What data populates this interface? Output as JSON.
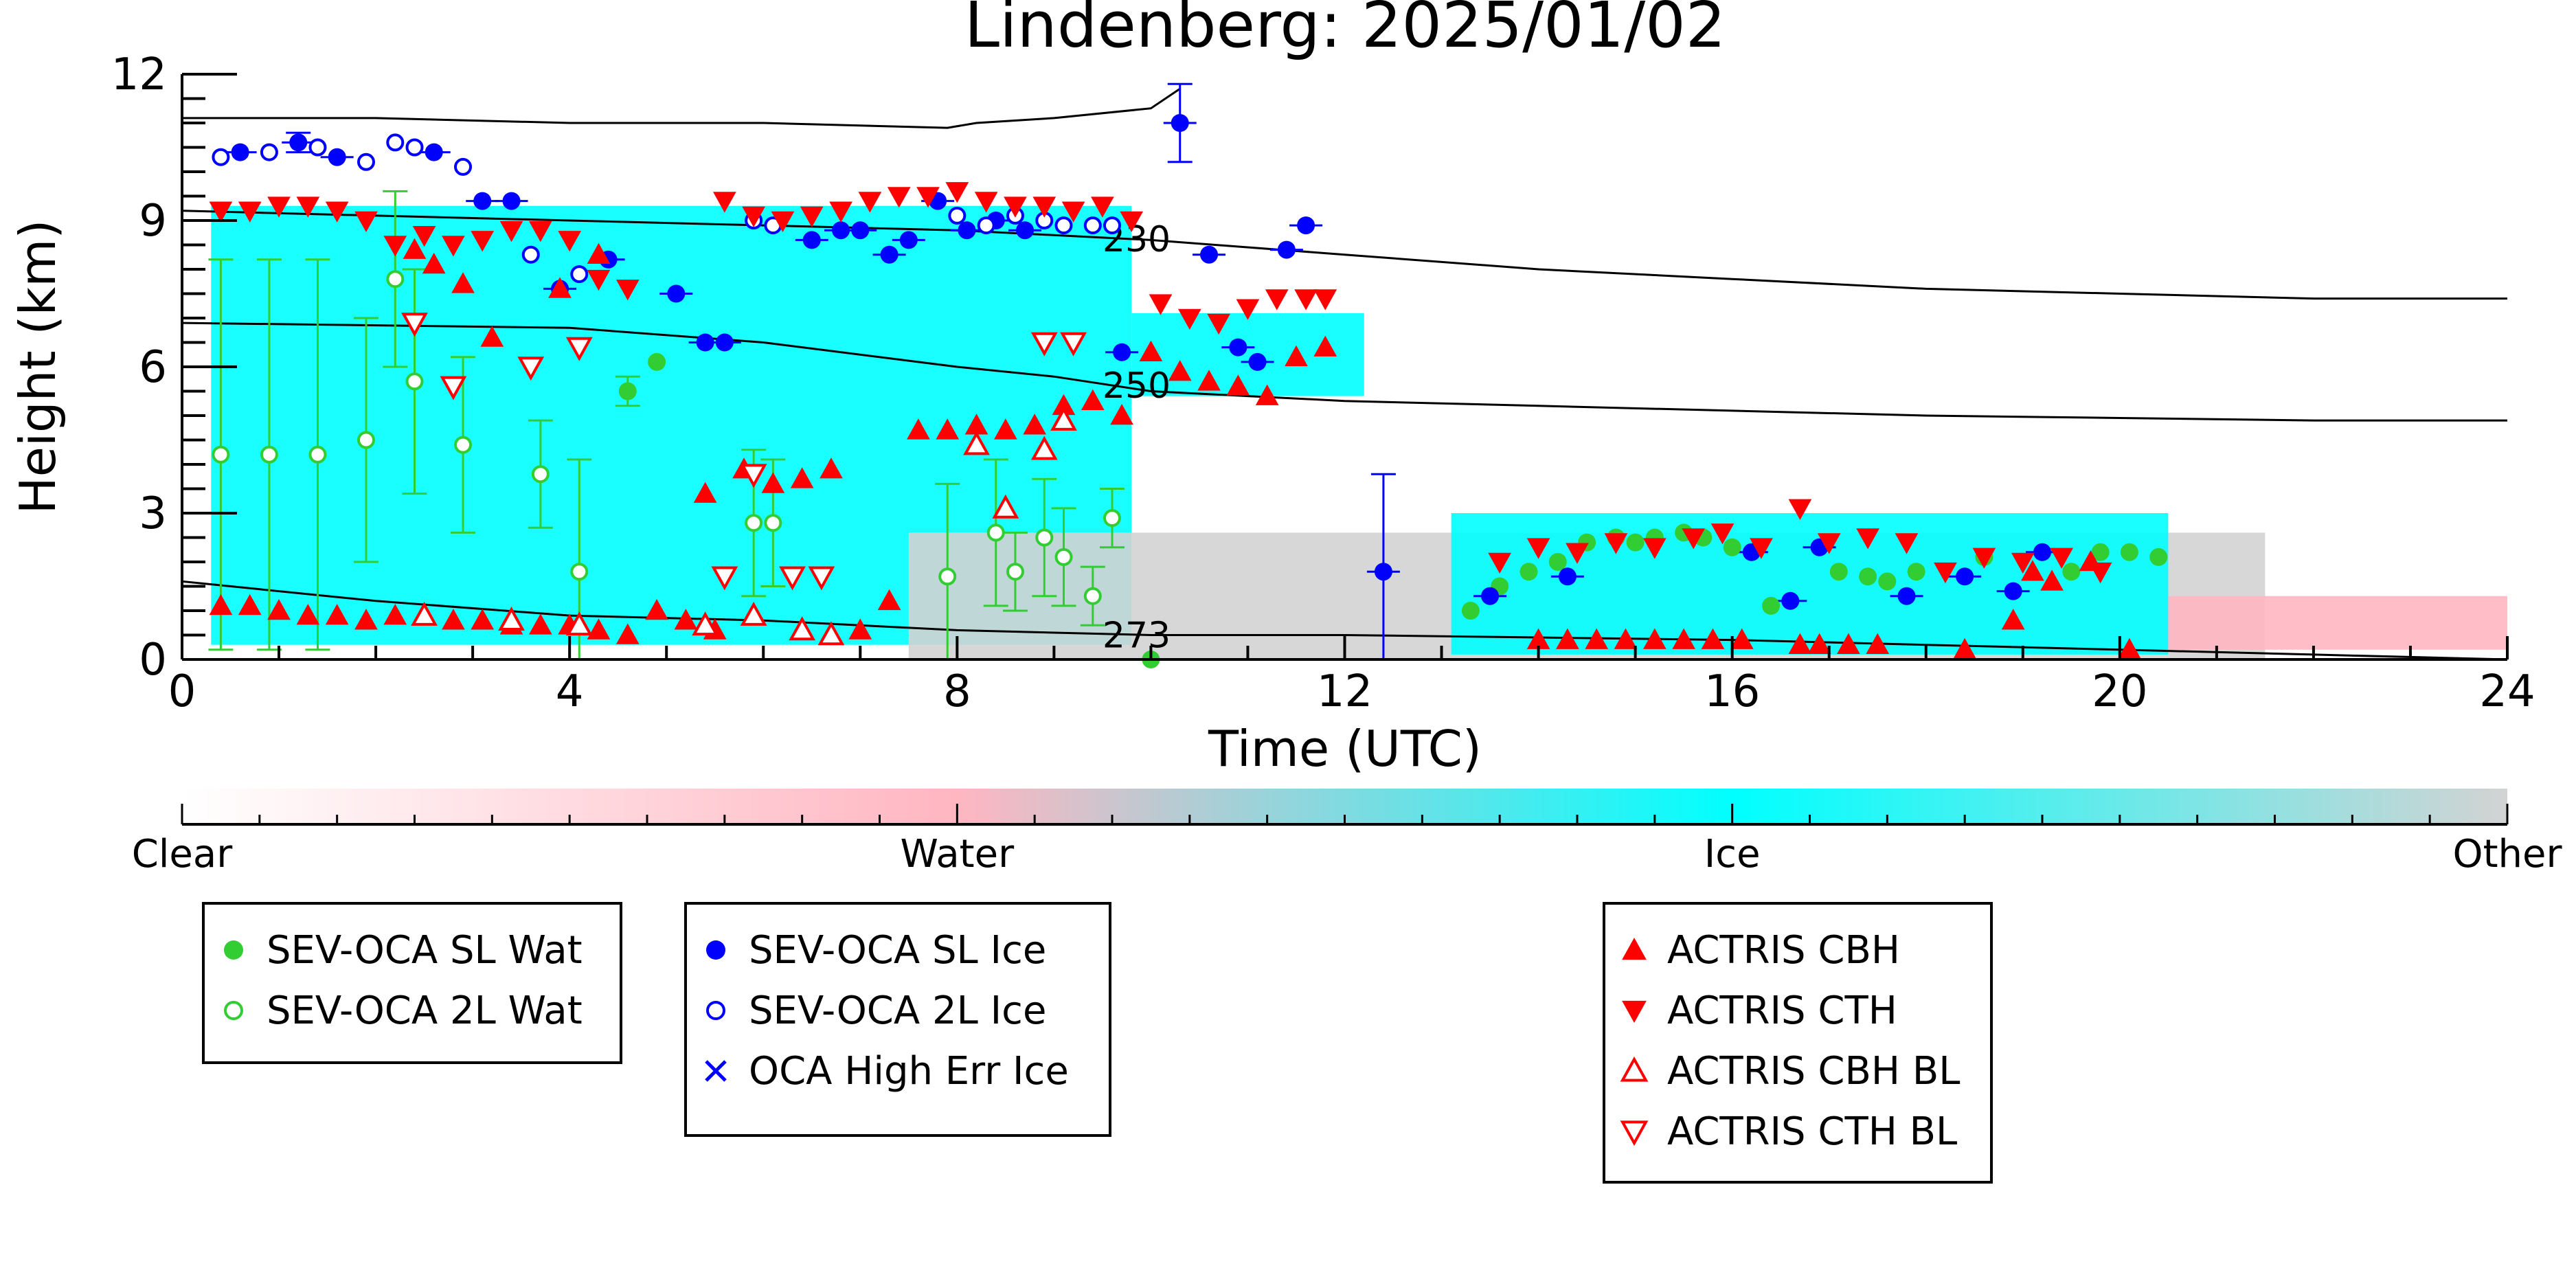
{
  "chart_data": {
    "type": "scatter",
    "title": "Lindenberg: 2025/01/02",
    "xlabel": "Time (UTC)",
    "ylabel": "Height (km)",
    "xlim": [
      0,
      24
    ],
    "ylim": [
      0,
      12
    ],
    "xticks": [
      0,
      4,
      8,
      12,
      16,
      20,
      24
    ],
    "yticks": [
      0,
      3,
      6,
      9,
      12
    ],
    "colorbar": {
      "labels": [
        "Clear",
        "Water",
        "Ice",
        "Other"
      ],
      "colors": [
        "#ffffff",
        "#ffb6c1",
        "#00ffff",
        "#d3d3d3"
      ]
    },
    "background_regions": [
      {
        "class": "Ice",
        "x": [
          0.3,
          9.8
        ],
        "y": [
          0.3,
          9.3
        ],
        "color": "#00ffff"
      },
      {
        "class": "Ice",
        "x": [
          9.8,
          12.2
        ],
        "y": [
          5.4,
          7.1
        ],
        "color": "#00ffff"
      },
      {
        "class": "Other",
        "x": [
          7.5,
          21.5
        ],
        "y": [
          0.0,
          2.6
        ],
        "color": "#d3d3d3"
      },
      {
        "class": "Ice",
        "x": [
          13.1,
          20.5
        ],
        "y": [
          0.1,
          3.0
        ],
        "color": "#00ffff"
      },
      {
        "class": "Water",
        "x": [
          20.5,
          24
        ],
        "y": [
          0.2,
          1.3
        ],
        "color": "#ffb6c1"
      }
    ],
    "contours": [
      {
        "label": "230",
        "label_x": 9.5,
        "x": [
          0,
          4,
          8,
          10,
          12,
          14,
          16,
          18,
          20,
          22,
          24
        ],
        "y": [
          9.2,
          9.0,
          8.8,
          8.6,
          8.3,
          8.0,
          7.8,
          7.6,
          7.5,
          7.4,
          7.4
        ]
      },
      {
        "label": "250",
        "label_x": 9.5,
        "x": [
          0,
          4,
          6,
          8,
          9,
          10,
          11,
          12,
          14,
          16,
          18,
          20,
          22,
          24
        ],
        "y": [
          6.9,
          6.8,
          6.5,
          6.0,
          5.8,
          5.5,
          5.4,
          5.3,
          5.2,
          5.1,
          5.0,
          4.95,
          4.9,
          4.9
        ]
      },
      {
        "label": "273",
        "label_x": 9.5,
        "x": [
          0,
          2,
          4,
          6,
          8,
          10,
          12,
          14,
          16,
          18,
          20,
          22,
          24
        ],
        "y": [
          1.6,
          1.2,
          0.9,
          0.8,
          0.6,
          0.5,
          0.5,
          0.45,
          0.4,
          0.3,
          0.2,
          0.1,
          0.0
        ]
      },
      {
        "label": "",
        "label_x": 0,
        "x": [
          0,
          2,
          4,
          6,
          7.9,
          8.2,
          9,
          10,
          10.3
        ],
        "y": [
          11.1,
          11.1,
          11.0,
          11.0,
          10.9,
          11.0,
          11.1,
          11.3,
          11.7
        ]
      }
    ],
    "series": [
      {
        "name": "SEV-OCA SL Wat",
        "marker": "filled-circle",
        "color": "#32cd32",
        "x": [
          4.6,
          4.9,
          13.3,
          13.6,
          13.9,
          14.2,
          14.5,
          14.8,
          15.0,
          15.2,
          15.5,
          15.7,
          16.0,
          16.4,
          17.1,
          17.4,
          17.6,
          17.9,
          18.6,
          19.5,
          19.8,
          20.1,
          20.4,
          10.0
        ],
        "y": [
          5.5,
          6.1,
          1.0,
          1.5,
          1.8,
          2.0,
          2.4,
          2.5,
          2.4,
          2.5,
          2.6,
          2.5,
          2.3,
          1.1,
          1.8,
          1.7,
          1.6,
          1.8,
          2.1,
          1.8,
          2.2,
          2.2,
          2.1,
          0.0
        ],
        "yerr": [
          0.3,
          0,
          0,
          0,
          0,
          0,
          0,
          0,
          0,
          0,
          0,
          0,
          0,
          0,
          0,
          0,
          0,
          0,
          0,
          0,
          0,
          0,
          0,
          0
        ]
      },
      {
        "name": "SEV-OCA 2L Wat",
        "marker": "open-circle",
        "color": "#32cd32",
        "x": [
          0.4,
          0.9,
          1.4,
          1.9,
          2.2,
          2.4,
          2.9,
          3.7,
          4.1,
          5.9,
          6.1,
          7.9,
          8.4,
          8.6,
          8.9,
          9.1,
          9.4,
          9.6
        ],
        "y": [
          4.2,
          4.2,
          4.2,
          4.5,
          7.8,
          5.7,
          4.4,
          3.8,
          1.8,
          2.8,
          2.8,
          1.7,
          2.6,
          1.8,
          2.5,
          2.1,
          1.3,
          2.9
        ],
        "yerr": [
          4.0,
          4.0,
          4.0,
          2.5,
          1.8,
          2.3,
          1.8,
          1.1,
          2.3,
          1.5,
          1.3,
          1.9,
          1.5,
          0.8,
          1.2,
          1.0,
          0.6,
          0.6
        ]
      },
      {
        "name": "SEV-OCA SL Ice",
        "marker": "filled-circle",
        "color": "#0000ff",
        "x": [
          0.6,
          1.2,
          1.6,
          2.6,
          3.1,
          3.4,
          3.9,
          4.4,
          5.1,
          5.4,
          5.6,
          6.5,
          6.8,
          7.0,
          7.3,
          7.5,
          7.8,
          8.1,
          8.4,
          8.7,
          10.3,
          10.6,
          10.9,
          11.1,
          11.4,
          11.6,
          12.4,
          13.5,
          14.3,
          16.2,
          16.6,
          16.9,
          17.8,
          18.4,
          18.9,
          19.2,
          9.7
        ],
        "y": [
          10.4,
          10.6,
          10.3,
          10.4,
          9.4,
          9.4,
          7.6,
          8.2,
          7.5,
          6.5,
          6.5,
          8.6,
          8.8,
          8.8,
          8.3,
          8.6,
          9.4,
          8.8,
          9.0,
          8.8,
          11.0,
          8.3,
          6.4,
          6.1,
          8.4,
          8.9,
          1.8,
          1.3,
          1.7,
          2.2,
          1.2,
          2.3,
          1.3,
          1.7,
          1.4,
          2.2,
          6.3
        ],
        "yerr": [
          0,
          0.2,
          0,
          0,
          0,
          0,
          0,
          0,
          0,
          0,
          0,
          0,
          0,
          0,
          0,
          0,
          0,
          0,
          0,
          0,
          0.8,
          0,
          0,
          0,
          0,
          0,
          2.0,
          0,
          0,
          0,
          0,
          0,
          0,
          0,
          0,
          0,
          0
        ]
      },
      {
        "name": "SEV-OCA 2L Ice",
        "marker": "open-circle",
        "color": "#0000ff",
        "x": [
          0.4,
          0.9,
          1.4,
          1.9,
          2.2,
          2.4,
          2.9,
          3.6,
          4.1,
          5.9,
          6.1,
          8.0,
          8.3,
          8.6,
          8.9,
          9.1,
          9.4,
          9.6
        ],
        "y": [
          10.3,
          10.4,
          10.5,
          10.2,
          10.6,
          10.5,
          10.1,
          8.3,
          7.9,
          9.0,
          8.9,
          9.1,
          8.9,
          9.1,
          9.0,
          8.9,
          8.9,
          8.9
        ],
        "yerr": [
          0,
          0,
          0,
          0,
          0,
          0,
          0,
          0,
          0,
          0,
          0,
          0,
          0,
          0,
          0,
          0,
          0,
          0
        ]
      },
      {
        "name": "OCA High Err Ice",
        "marker": "x",
        "color": "#0000ff",
        "x": [],
        "y": []
      },
      {
        "name": "ACTRIS CBH",
        "marker": "triangle-up",
        "color": "#ff0000",
        "x": [
          0.4,
          0.7,
          1.0,
          1.3,
          1.6,
          1.9,
          2.2,
          2.5,
          2.8,
          3.1,
          3.4,
          3.7,
          4.0,
          4.3,
          4.6,
          4.9,
          5.2,
          5.5,
          5.8,
          6.1,
          6.4,
          6.7,
          7.0,
          7.3,
          7.6,
          7.9,
          8.2,
          8.5,
          8.8,
          9.1,
          9.4,
          9.7,
          10.0,
          10.3,
          10.6,
          10.9,
          11.2,
          11.5,
          11.8,
          2.4,
          2.6,
          2.9,
          3.2,
          3.9,
          4.3,
          5.4,
          14.0,
          14.3,
          14.6,
          14.9,
          15.2,
          15.5,
          15.8,
          16.1,
          16.7,
          16.9,
          17.2,
          17.5,
          18.4,
          18.9,
          19.1,
          19.3,
          19.7,
          20.1
        ],
        "y": [
          1.1,
          1.1,
          1.0,
          0.9,
          0.9,
          0.8,
          0.9,
          0.9,
          0.8,
          0.8,
          0.7,
          0.7,
          0.7,
          0.6,
          0.5,
          1.0,
          0.8,
          0.6,
          3.9,
          3.6,
          3.7,
          3.9,
          0.6,
          1.2,
          4.7,
          4.7,
          4.8,
          4.7,
          4.8,
          5.2,
          5.3,
          5.0,
          6.3,
          5.9,
          5.7,
          5.6,
          5.4,
          6.2,
          6.4,
          8.4,
          8.1,
          7.7,
          6.6,
          7.6,
          8.3,
          3.4,
          0.4,
          0.4,
          0.4,
          0.4,
          0.4,
          0.4,
          0.4,
          0.4,
          0.3,
          0.3,
          0.3,
          0.3,
          0.2,
          0.8,
          1.8,
          1.6,
          2.0,
          0.2
        ],
        "yerr": []
      },
      {
        "name": "ACTRIS CTH",
        "marker": "triangle-down",
        "color": "#ff0000",
        "x": [
          0.4,
          0.7,
          1.0,
          1.3,
          1.6,
          1.9,
          2.2,
          2.5,
          2.8,
          3.1,
          3.4,
          3.7,
          4.0,
          4.3,
          4.6,
          5.6,
          5.9,
          6.2,
          6.5,
          6.8,
          7.1,
          7.4,
          7.7,
          8.0,
          8.3,
          8.6,
          8.9,
          9.2,
          9.5,
          9.8,
          10.1,
          10.4,
          10.7,
          11.0,
          11.3,
          11.6,
          11.8,
          13.6,
          14.0,
          14.4,
          14.8,
          15.2,
          15.6,
          15.9,
          16.3,
          16.7,
          17.0,
          17.4,
          17.8,
          18.2,
          18.6,
          19.0,
          19.4,
          19.8
        ],
        "y": [
          9.2,
          9.2,
          9.3,
          9.3,
          9.2,
          9.0,
          8.5,
          8.7,
          8.5,
          8.6,
          8.8,
          8.8,
          8.6,
          7.8,
          7.6,
          9.4,
          9.1,
          9.0,
          9.1,
          9.2,
          9.4,
          9.5,
          9.5,
          9.6,
          9.4,
          9.3,
          9.3,
          9.2,
          9.3,
          9.0,
          7.3,
          7.0,
          6.9,
          7.2,
          7.4,
          7.4,
          7.4,
          2.0,
          2.3,
          2.2,
          2.4,
          2.3,
          2.5,
          2.6,
          2.3,
          3.1,
          2.4,
          2.5,
          2.4,
          1.8,
          2.1,
          2.0,
          2.1,
          1.8
        ],
        "yerr": []
      },
      {
        "name": "ACTRIS CBH BL",
        "marker": "open-triangle-up",
        "color": "#ff0000",
        "x": [
          2.5,
          3.4,
          4.1,
          5.4,
          5.9,
          6.4,
          6.7,
          8.2,
          8.5,
          8.9,
          9.1
        ],
        "y": [
          0.9,
          0.8,
          0.7,
          0.7,
          0.9,
          0.6,
          0.5,
          4.4,
          3.1,
          4.3,
          4.9
        ],
        "yerr": []
      },
      {
        "name": "ACTRIS CTH BL",
        "marker": "open-triangle-down",
        "color": "#ff0000",
        "x": [
          2.4,
          2.8,
          3.6,
          4.1,
          5.6,
          5.9,
          6.3,
          6.6,
          8.9,
          9.2
        ],
        "y": [
          6.9,
          5.6,
          6.0,
          6.4,
          1.7,
          3.8,
          1.7,
          1.7,
          6.5,
          6.5
        ],
        "yerr": []
      }
    ]
  },
  "legends": [
    {
      "entries": [
        {
          "series": 0,
          "label": "SEV-OCA SL Wat"
        },
        {
          "series": 1,
          "label": "SEV-OCA 2L Wat"
        }
      ]
    },
    {
      "entries": [
        {
          "series": 2,
          "label": "SEV-OCA SL Ice"
        },
        {
          "series": 3,
          "label": "SEV-OCA 2L Ice"
        },
        {
          "series": 4,
          "label": "OCA High Err Ice"
        }
      ]
    },
    {
      "entries": [
        {
          "series": 5,
          "label": "ACTRIS CBH"
        },
        {
          "series": 6,
          "label": "ACTRIS CTH"
        },
        {
          "series": 7,
          "label": "ACTRIS CBH BL"
        },
        {
          "series": 8,
          "label": "ACTRIS CTH BL"
        }
      ]
    }
  ]
}
